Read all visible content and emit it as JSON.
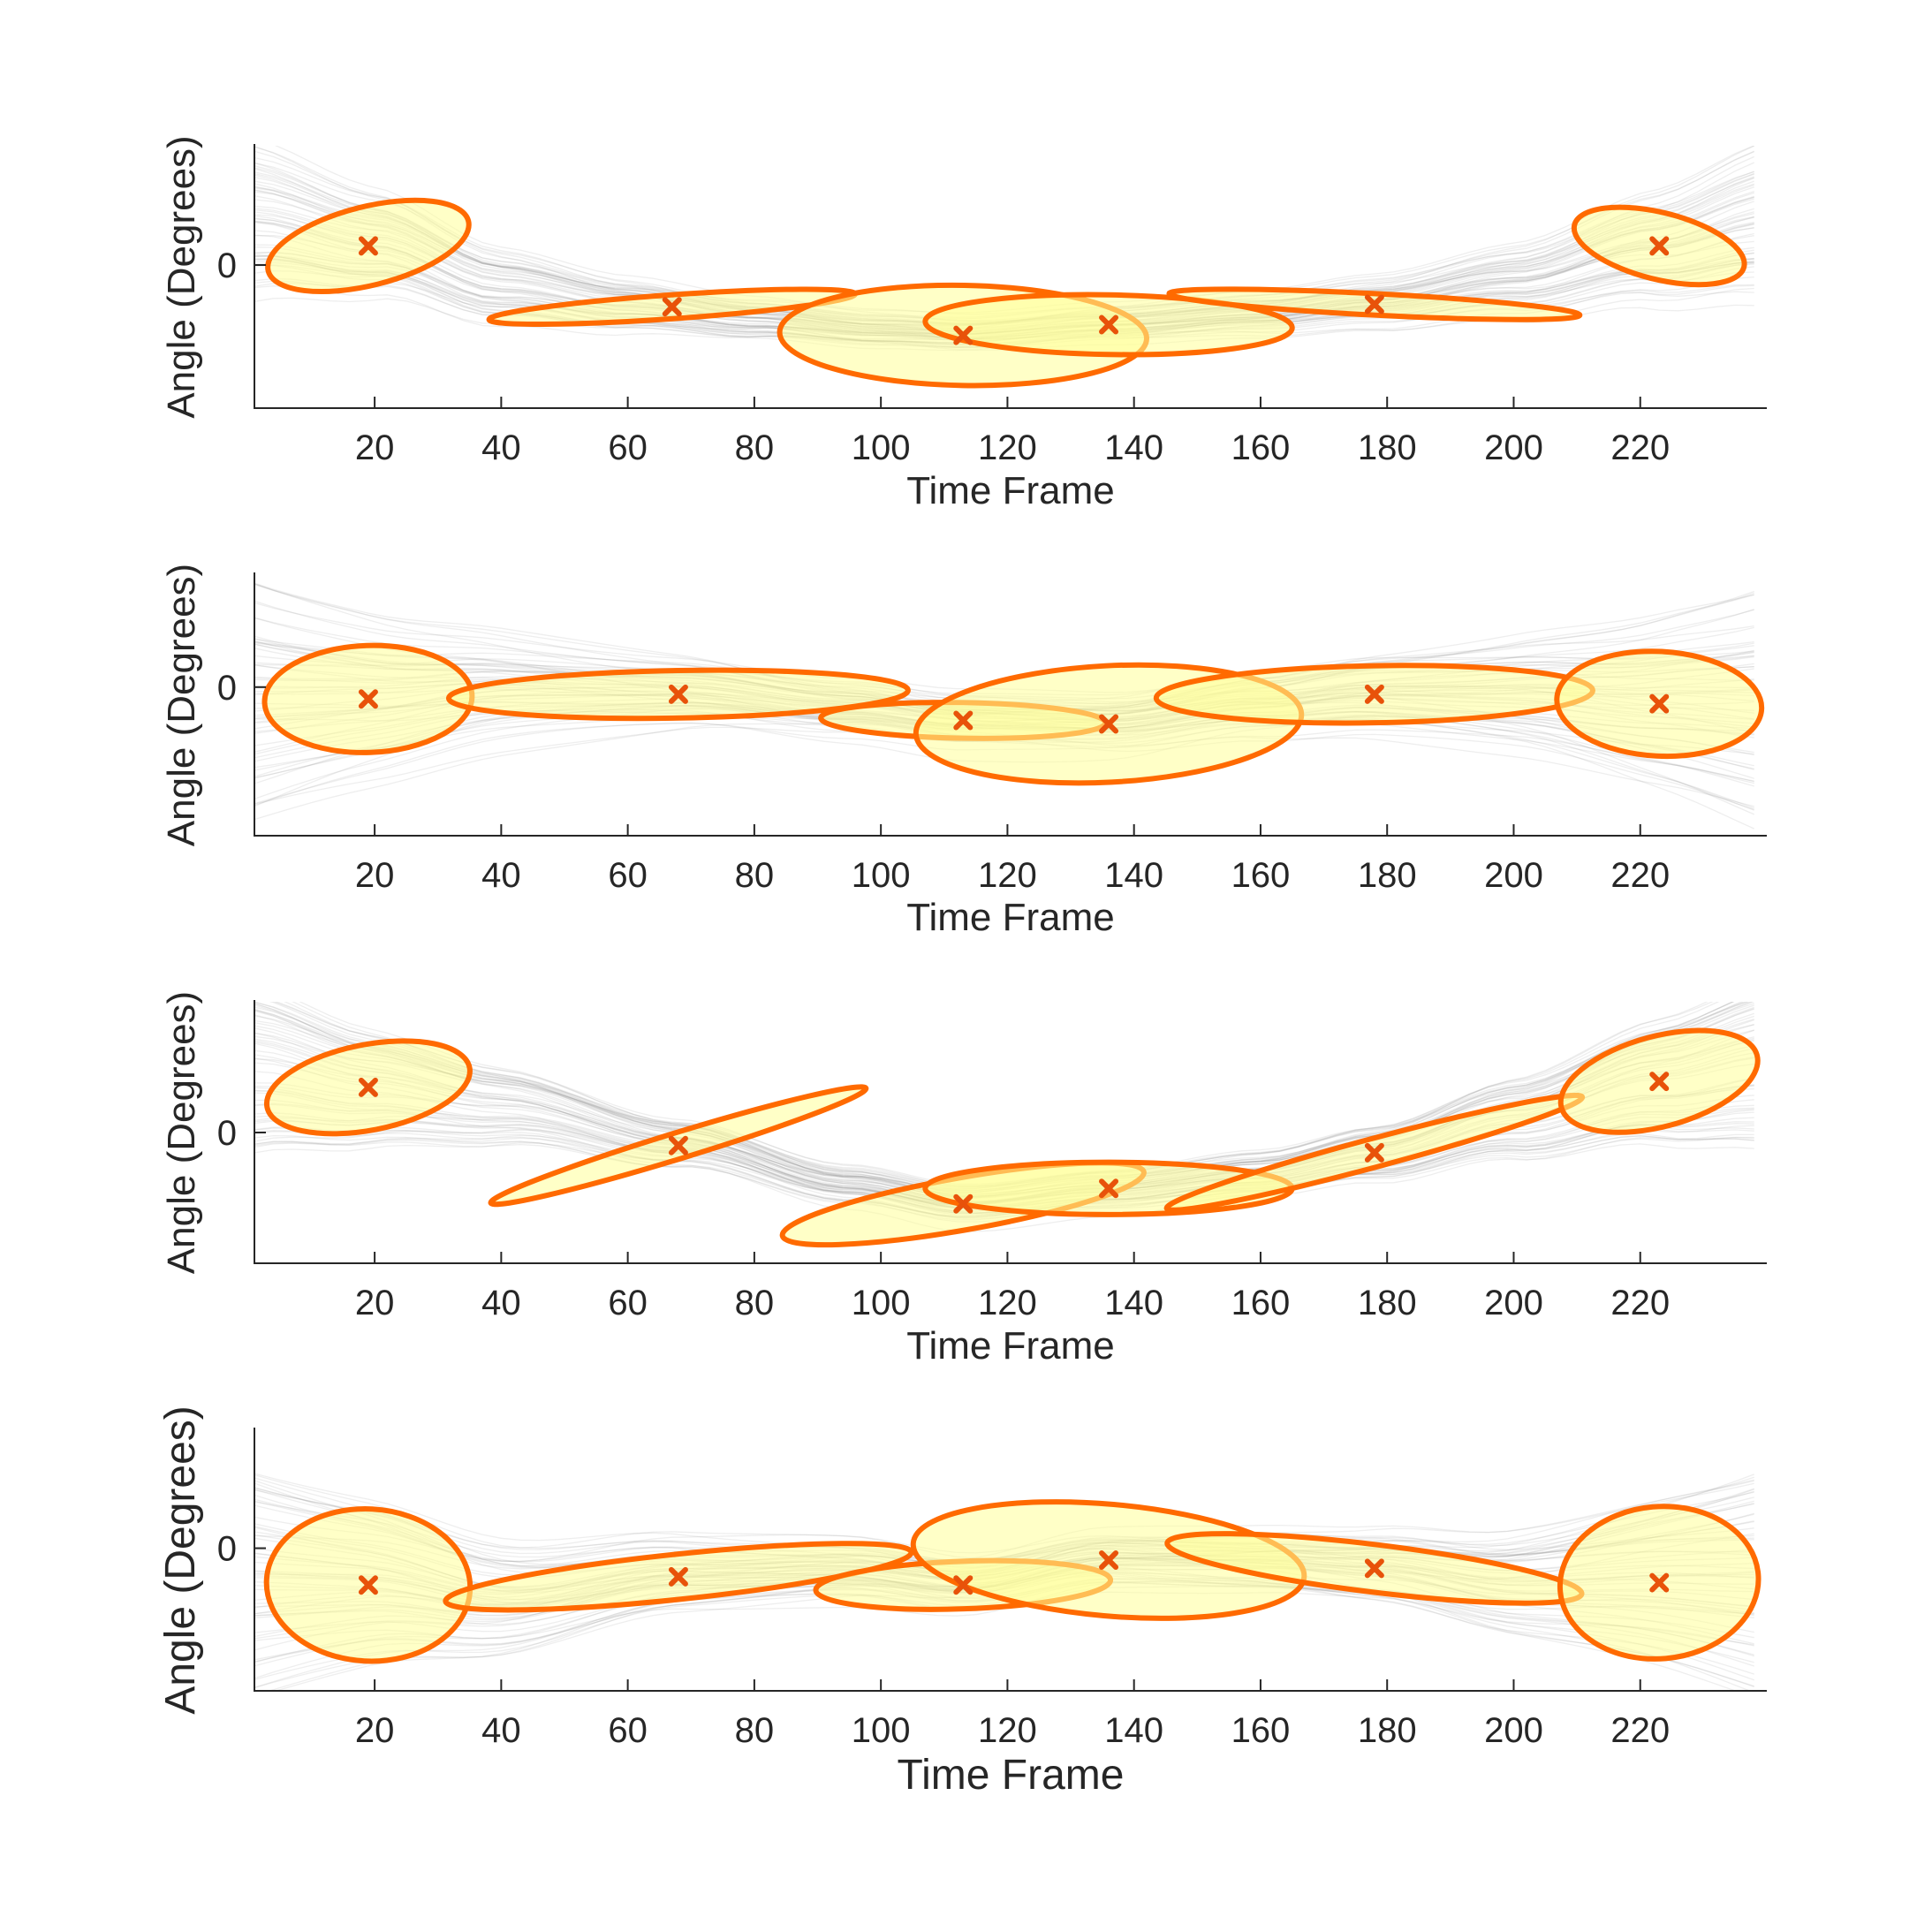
{
  "chart_data": [
    {
      "type": "scatter",
      "xlabel": "Time Frame",
      "ylabel": "Angle (Degrees)",
      "xlim": [
        1,
        240
      ],
      "ylim": [
        -1.2,
        1.0
      ],
      "xticks": [
        20,
        40,
        60,
        80,
        100,
        120,
        140,
        160,
        180,
        200,
        220
      ],
      "yticks": [
        0
      ],
      "mean_curve": [
        [
          1,
          0.38
        ],
        [
          20,
          0.18
        ],
        [
          40,
          -0.18
        ],
        [
          60,
          -0.34
        ],
        [
          80,
          -0.46
        ],
        [
          100,
          -0.55
        ],
        [
          113,
          -0.58
        ],
        [
          136,
          -0.5
        ],
        [
          160,
          -0.42
        ],
        [
          178,
          -0.32
        ],
        [
          200,
          -0.14
        ],
        [
          222,
          0.14
        ],
        [
          240,
          0.36
        ]
      ],
      "spread": 0.25,
      "gaussians": [
        {
          "x": 19,
          "y": 0.16,
          "rx": 16.3,
          "ry": 0.33,
          "angle": -14
        },
        {
          "x": 67,
          "y": -0.35,
          "rx": 29,
          "ry": 0.1,
          "angle": -4
        },
        {
          "x": 113,
          "y": -0.59,
          "rx": 29,
          "ry": 0.42,
          "angle": 1
        },
        {
          "x": 136,
          "y": -0.5,
          "rx": 29,
          "ry": 0.25,
          "angle": 1
        },
        {
          "x": 178,
          "y": -0.33,
          "rx": 32.5,
          "ry": 0.09,
          "angle": 3
        },
        {
          "x": 223,
          "y": 0.16,
          "rx": 13.8,
          "ry": 0.28,
          "angle": 14
        }
      ]
    },
    {
      "type": "scatter",
      "xlabel": "Time Frame",
      "ylabel": "Angle (Degrees)",
      "xlim": [
        1,
        240
      ],
      "ylim": [
        -1.25,
        0.95
      ],
      "xticks": [
        20,
        40,
        60,
        80,
        100,
        120,
        140,
        160,
        180,
        200,
        220
      ],
      "yticks": [
        0
      ],
      "mean_curve": [
        [
          1,
          -0.12
        ],
        [
          19,
          -0.1
        ],
        [
          40,
          -0.02
        ],
        [
          68,
          -0.04
        ],
        [
          95,
          -0.18
        ],
        [
          113,
          -0.28
        ],
        [
          136,
          -0.3
        ],
        [
          160,
          -0.14
        ],
        [
          178,
          -0.05
        ],
        [
          200,
          -0.06
        ],
        [
          223,
          -0.14
        ],
        [
          240,
          -0.18
        ]
      ],
      "spread": 0.35,
      "gaussians": [
        {
          "x": 19,
          "y": -0.1,
          "rx": 16.4,
          "ry": 0.45,
          "angle": -2
        },
        {
          "x": 68,
          "y": -0.06,
          "rx": 36.3,
          "ry": 0.2,
          "angle": -1
        },
        {
          "x": 113,
          "y": -0.28,
          "rx": 22.5,
          "ry": 0.15,
          "angle": 1
        },
        {
          "x": 136,
          "y": -0.31,
          "rx": 30.5,
          "ry": 0.49,
          "angle": -3
        },
        {
          "x": 178,
          "y": -0.06,
          "rx": 34.5,
          "ry": 0.24,
          "angle": -1
        },
        {
          "x": 223,
          "y": -0.14,
          "rx": 16.2,
          "ry": 0.44,
          "angle": 3
        }
      ]
    },
    {
      "type": "scatter",
      "xlabel": "Time Frame",
      "ylabel": "Angle (Degrees)",
      "xlim": [
        1,
        240
      ],
      "ylim": [
        -1.1,
        1.1
      ],
      "xticks": [
        20,
        40,
        60,
        80,
        100,
        120,
        140,
        160,
        180,
        200,
        220
      ],
      "yticks": [
        0
      ],
      "mean_curve": [
        [
          1,
          0.55
        ],
        [
          19,
          0.38
        ],
        [
          40,
          0.22
        ],
        [
          68,
          -0.1
        ],
        [
          95,
          -0.45
        ],
        [
          113,
          -0.6
        ],
        [
          136,
          -0.48
        ],
        [
          160,
          -0.35
        ],
        [
          178,
          -0.18
        ],
        [
          200,
          0.12
        ],
        [
          223,
          0.44
        ],
        [
          240,
          0.6
        ]
      ],
      "spread": 0.25,
      "gaussians": [
        {
          "x": 19,
          "y": 0.38,
          "rx": 16.3,
          "ry": 0.36,
          "angle": -11
        },
        {
          "x": 68,
          "y": -0.11,
          "rx": 31,
          "ry": 0.11,
          "angle": -17
        },
        {
          "x": 113,
          "y": -0.6,
          "rx": 29,
          "ry": 0.22,
          "angle": -10
        },
        {
          "x": 136,
          "y": -0.47,
          "rx": 29,
          "ry": 0.22,
          "angle": 0
        },
        {
          "x": 178,
          "y": -0.17,
          "rx": 34,
          "ry": 0.12,
          "angle": -15
        },
        {
          "x": 223,
          "y": 0.43,
          "rx": 16,
          "ry": 0.38,
          "angle": -15
        }
      ]
    },
    {
      "type": "scatter",
      "xlabel": "Time Frame",
      "ylabel": "Angle (Degrees)",
      "xlim": [
        1,
        240
      ],
      "ylim": [
        -1.2,
        1.0
      ],
      "xticks": [
        20,
        40,
        60,
        80,
        100,
        120,
        140,
        160,
        180,
        200,
        220
      ],
      "yticks": [
        0
      ],
      "mean_curve": [
        [
          1,
          -0.3
        ],
        [
          19,
          -0.3
        ],
        [
          40,
          -0.45
        ],
        [
          68,
          -0.23
        ],
        [
          95,
          -0.2
        ],
        [
          113,
          -0.3
        ],
        [
          136,
          -0.1
        ],
        [
          160,
          -0.12
        ],
        [
          178,
          -0.17
        ],
        [
          200,
          -0.32
        ],
        [
          223,
          -0.28
        ],
        [
          240,
          -0.3
        ]
      ],
      "spread": 0.35,
      "gaussians": [
        {
          "x": 19,
          "y": -0.31,
          "rx": 16.1,
          "ry": 0.64,
          "angle": 3
        },
        {
          "x": 68,
          "y": -0.24,
          "rx": 37,
          "ry": 0.19,
          "angle": -6
        },
        {
          "x": 113,
          "y": -0.31,
          "rx": 23.3,
          "ry": 0.2,
          "angle": -2
        },
        {
          "x": 136,
          "y": -0.1,
          "rx": 31,
          "ry": 0.47,
          "angle": 5
        },
        {
          "x": 178,
          "y": -0.17,
          "rx": 33,
          "ry": 0.2,
          "angle": 7
        },
        {
          "x": 223,
          "y": -0.29,
          "rx": 15.7,
          "ry": 0.64,
          "angle": -5
        }
      ]
    }
  ],
  "colors": {
    "ellipse_fill": "#ffff99",
    "ellipse_edge": "#ff6a00",
    "center_mark": "#e8520a",
    "trace": "#7a7a7a"
  },
  "mark_icon": "x-mark-icon"
}
